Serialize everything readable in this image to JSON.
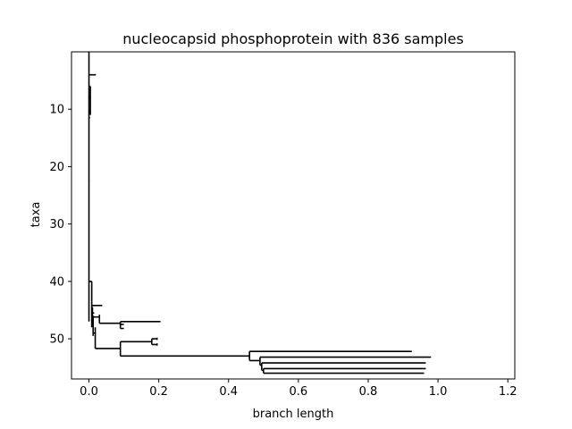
{
  "chart_data": {
    "type": "dendrogram",
    "title": "nucleocapsid phosphoprotein with 836 samples",
    "xlabel": "branch length",
    "ylabel": "taxa",
    "xlim": [
      -0.05,
      1.22
    ],
    "ylim": [
      57,
      0
    ],
    "xticks": [
      0.0,
      0.2,
      0.4,
      0.6,
      0.8,
      1.0,
      1.2
    ],
    "xtick_labels": [
      "0.0",
      "0.2",
      "0.4",
      "0.6",
      "0.8",
      "1.0",
      "1.2"
    ],
    "yticks": [
      10,
      20,
      30,
      40,
      50
    ],
    "ytick_labels": [
      "10",
      "20",
      "30",
      "40",
      "50"
    ],
    "grid": false,
    "branches_horizontal": [
      {
        "y": 4,
        "x": [
          0.0,
          0.02
        ]
      },
      {
        "y": 6,
        "x": [
          0.0,
          0.004
        ]
      },
      {
        "y": 8,
        "x": [
          0.0,
          0.003
        ]
      },
      {
        "y": 10.5,
        "x": [
          0.0,
          0.004
        ]
      },
      {
        "y": 11.5,
        "x": [
          0.0,
          0.003
        ]
      },
      {
        "y": 22.5,
        "x": [
          0.0,
          0.002
        ]
      },
      {
        "y": 40,
        "x": [
          0.0,
          0.008
        ]
      },
      {
        "y": 44.2,
        "x": [
          0.008,
          0.038
        ]
      },
      {
        "y": 45.5,
        "x": [
          0.01,
          0.015
        ]
      },
      {
        "y": 46.2,
        "x": [
          0.01,
          0.03
        ]
      },
      {
        "y": 47,
        "x": [
          0.09,
          0.205
        ]
      },
      {
        "y": 47.3,
        "x": [
          0.03,
          0.09
        ]
      },
      {
        "y": 47.5,
        "x": [
          0.09,
          0.1
        ]
      },
      {
        "y": 48.2,
        "x": [
          0.09,
          0.1
        ]
      },
      {
        "y": 49,
        "x": [
          0.012,
          0.02
        ]
      },
      {
        "y": 50,
        "x": [
          0.18,
          0.195
        ]
      },
      {
        "y": 50.5,
        "x": [
          0.09,
          0.18
        ]
      },
      {
        "y": 51,
        "x": [
          0.18,
          0.195
        ]
      },
      {
        "y": 51.7,
        "x": [
          0.018,
          0.09
        ]
      },
      {
        "y": 52.2,
        "x": [
          0.46,
          0.925
        ]
      },
      {
        "y": 53,
        "x": [
          0.09,
          0.46
        ]
      },
      {
        "y": 53.2,
        "x": [
          0.49,
          0.98
        ]
      },
      {
        "y": 53.8,
        "x": [
          0.46,
          0.49
        ]
      },
      {
        "y": 54.2,
        "x": [
          0.495,
          0.965
        ]
      },
      {
        "y": 54.6,
        "x": [
          0.49,
          0.495
        ]
      },
      {
        "y": 55.2,
        "x": [
          0.5,
          0.965
        ]
      },
      {
        "y": 55.5,
        "x": [
          0.495,
          0.5
        ]
      },
      {
        "y": 56,
        "x": [
          0.5,
          0.96
        ]
      }
    ],
    "branches_vertical": [
      {
        "x": 0.0,
        "y": [
          0.0,
          47
        ]
      },
      {
        "x": 0.004,
        "y": [
          6,
          11
        ]
      },
      {
        "x": 0.008,
        "y": [
          40,
          48
        ]
      },
      {
        "x": 0.01,
        "y": [
          44.5,
          47
        ]
      },
      {
        "x": 0.012,
        "y": [
          46,
          49.5
        ]
      },
      {
        "x": 0.018,
        "y": [
          48,
          51.7
        ]
      },
      {
        "x": 0.03,
        "y": [
          45.8,
          47.3
        ]
      },
      {
        "x": 0.09,
        "y": [
          47,
          48.2
        ]
      },
      {
        "x": 0.09,
        "y": [
          50.5,
          53
        ]
      },
      {
        "x": 0.18,
        "y": [
          50,
          51
        ]
      },
      {
        "x": 0.195,
        "y": [
          49.8,
          50.2
        ]
      },
      {
        "x": 0.195,
        "y": [
          50.8,
          51.2
        ]
      },
      {
        "x": 0.46,
        "y": [
          52.2,
          53.8
        ]
      },
      {
        "x": 0.49,
        "y": [
          53.2,
          54.6
        ]
      },
      {
        "x": 0.495,
        "y": [
          54.2,
          55.5
        ]
      },
      {
        "x": 0.5,
        "y": [
          55.2,
          56
        ]
      }
    ]
  }
}
